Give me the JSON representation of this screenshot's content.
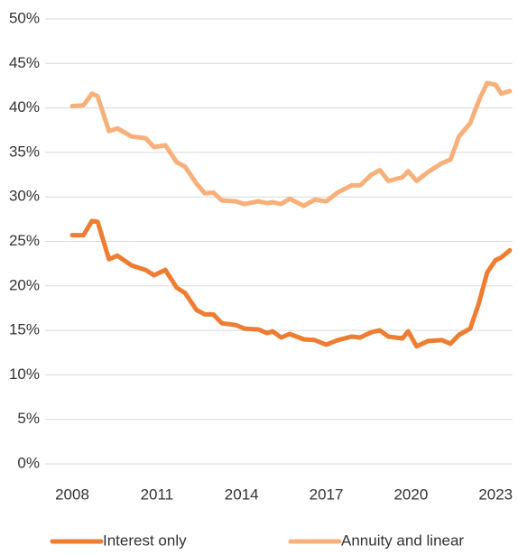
{
  "chart_data": {
    "type": "line",
    "x": [
      2008.0,
      2008.4,
      2008.7,
      2008.9,
      2009.3,
      2009.6,
      2010.1,
      2010.6,
      2010.9,
      2011.3,
      2011.7,
      2012.0,
      2012.4,
      2012.7,
      2013.0,
      2013.3,
      2013.8,
      2014.1,
      2014.6,
      2014.9,
      2015.1,
      2015.4,
      2015.7,
      2016.2,
      2016.6,
      2017.0,
      2017.4,
      2017.9,
      2018.2,
      2018.6,
      2018.9,
      2019.2,
      2019.7,
      2019.9,
      2020.2,
      2020.6,
      2021.1,
      2021.4,
      2021.7,
      2022.1,
      2022.4,
      2022.7,
      2023.0,
      2023.2,
      2023.5
    ],
    "series": [
      {
        "name": "Interest only",
        "color": "#ed7d31",
        "values": [
          25.7,
          25.7,
          27.3,
          27.2,
          23.0,
          23.4,
          22.3,
          21.8,
          21.2,
          21.8,
          19.8,
          19.2,
          17.3,
          16.8,
          16.8,
          15.8,
          15.6,
          15.2,
          15.1,
          14.7,
          14.9,
          14.2,
          14.6,
          14.0,
          13.9,
          13.4,
          13.9,
          14.3,
          14.2,
          14.8,
          15.0,
          14.3,
          14.1,
          14.9,
          13.2,
          13.8,
          13.9,
          13.5,
          14.5,
          15.2,
          18.0,
          21.5,
          22.9,
          23.2,
          24.0
        ]
      },
      {
        "name": "Annuity and linear",
        "color": "#f8b07a",
        "values": [
          40.2,
          40.3,
          41.6,
          41.3,
          37.4,
          37.7,
          36.8,
          36.6,
          35.6,
          35.8,
          33.9,
          33.4,
          31.5,
          30.4,
          30.5,
          29.6,
          29.5,
          29.2,
          29.5,
          29.3,
          29.4,
          29.2,
          29.8,
          29.0,
          29.7,
          29.5,
          30.5,
          31.3,
          31.3,
          32.5,
          33.0,
          31.8,
          32.2,
          32.9,
          31.8,
          32.8,
          33.8,
          34.2,
          36.8,
          38.3,
          40.8,
          42.8,
          42.6,
          41.6,
          41.9
        ]
      }
    ],
    "xlim": [
      2007.6,
      2023.6
    ],
    "xticks": [
      2008,
      2011,
      2014,
      2017,
      2020,
      2023
    ],
    "ylim": [
      0,
      50
    ],
    "yticks": [
      {
        "value": 0,
        "label": "0%"
      },
      {
        "value": 5,
        "label": "5%"
      },
      {
        "value": 10,
        "label": "10%"
      },
      {
        "value": 15,
        "label": "15%"
      },
      {
        "value": 20,
        "label": "20%"
      },
      {
        "value": 25,
        "label": "25%"
      },
      {
        "value": 30,
        "label": "30%"
      },
      {
        "value": 35,
        "label": "35%"
      },
      {
        "value": 40,
        "label": "40%"
      },
      {
        "value": 45,
        "label": "45%"
      },
      {
        "value": 50,
        "label": "50%"
      }
    ],
    "grid": true
  }
}
